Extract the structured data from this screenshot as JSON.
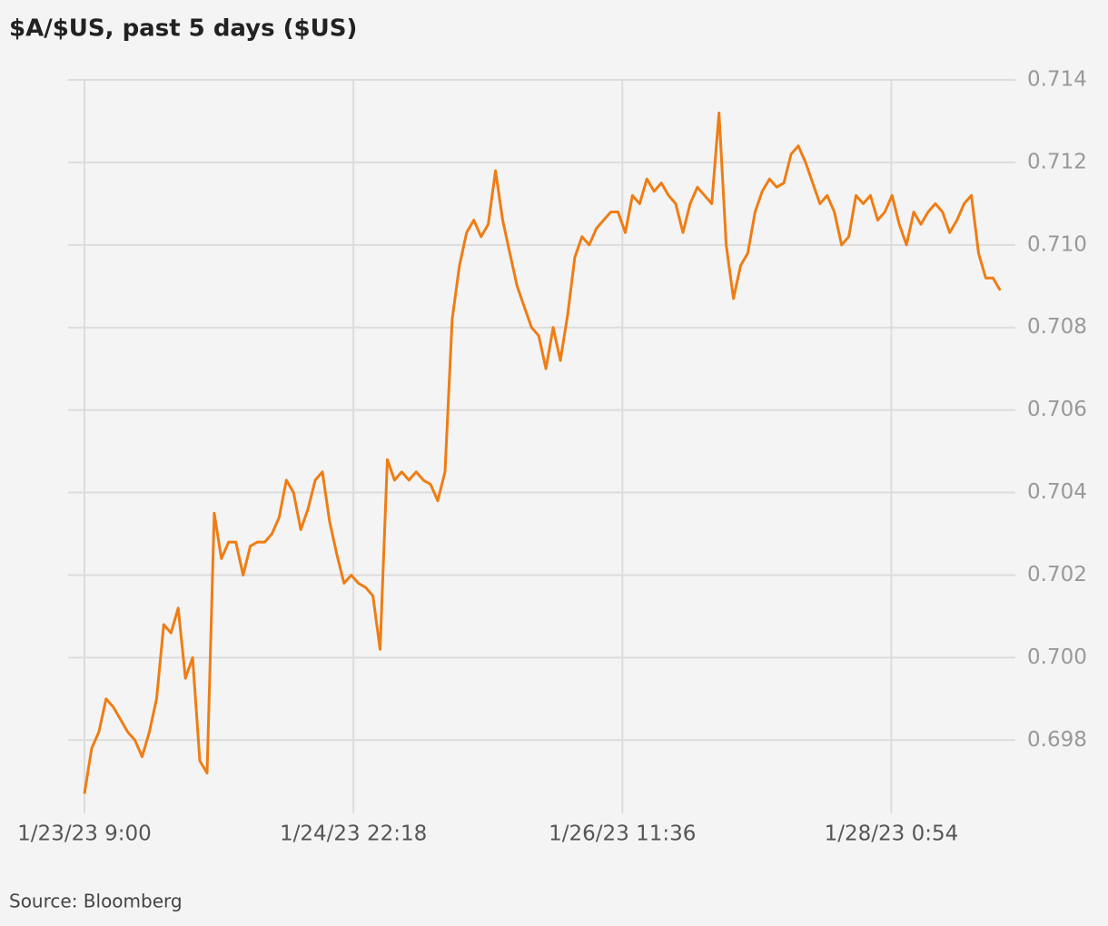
{
  "chart_data": {
    "type": "line",
    "title": "$A/$US, past 5 days ($US)",
    "source": "Source: Bloomberg",
    "color": "#ef7d14",
    "grid": true,
    "x": [
      "1/23/23 9:00",
      "1/23/23 10:00",
      "1/23/23 11:00",
      "1/23/23 12:00",
      "1/23/23 13:00",
      "1/23/23 14:00",
      "1/23/23 15:00",
      "1/23/23 16:00",
      "1/23/23 17:00",
      "1/23/23 18:00",
      "1/23/23 19:00",
      "1/23/23 20:00",
      "1/23/23 21:00",
      "1/23/23 22:00",
      "1/23/23 23:00",
      "1/24/23 0:00",
      "1/24/23 1:00",
      "1/24/23 2:00",
      "1/24/23 3:00",
      "1/24/23 4:00",
      "1/24/23 5:00",
      "1/24/23 6:00",
      "1/24/23 7:00",
      "1/24/23 8:00",
      "1/24/23 9:00",
      "1/24/23 10:00",
      "1/24/23 11:00",
      "1/24/23 12:00",
      "1/24/23 13:00",
      "1/24/23 14:00",
      "1/24/23 15:00",
      "1/24/23 16:00",
      "1/24/23 17:00",
      "1/24/23 18:00",
      "1/24/23 19:00",
      "1/24/23 20:00",
      "1/24/23 21:00",
      "1/24/23 22:00",
      "1/24/23 23:00",
      "1/25/23 0:00",
      "1/25/23 1:00",
      "1/25/23 2:00",
      "1/25/23 3:00",
      "1/25/23 4:00",
      "1/25/23 5:00",
      "1/25/23 6:00",
      "1/25/23 7:00",
      "1/25/23 8:00",
      "1/25/23 9:00",
      "1/25/23 10:00",
      "1/25/23 11:00",
      "1/25/23 12:00",
      "1/25/23 13:00",
      "1/25/23 14:00",
      "1/25/23 15:00",
      "1/25/23 16:00",
      "1/25/23 17:00",
      "1/25/23 18:00",
      "1/25/23 19:00",
      "1/25/23 20:00",
      "1/25/23 21:00",
      "1/25/23 22:00",
      "1/25/23 23:00",
      "1/26/23 0:00",
      "1/26/23 1:00",
      "1/26/23 2:00",
      "1/26/23 3:00",
      "1/26/23 4:00",
      "1/26/23 5:00",
      "1/26/23 6:00",
      "1/26/23 7:00",
      "1/26/23 8:00",
      "1/26/23 9:00",
      "1/26/23 10:00",
      "1/26/23 11:00",
      "1/26/23 12:00",
      "1/26/23 13:00",
      "1/26/23 14:00",
      "1/26/23 15:00",
      "1/26/23 16:00",
      "1/26/23 17:00",
      "1/26/23 18:00",
      "1/26/23 19:00",
      "1/26/23 20:00",
      "1/26/23 21:00",
      "1/26/23 22:00",
      "1/26/23 23:00",
      "1/27/23 0:00",
      "1/27/23 1:00",
      "1/27/23 2:00",
      "1/27/23 3:00",
      "1/27/23 4:00",
      "1/27/23 5:00",
      "1/27/23 6:00",
      "1/27/23 7:00",
      "1/27/23 8:00",
      "1/27/23 9:00",
      "1/27/23 10:00",
      "1/27/23 11:00",
      "1/27/23 12:00",
      "1/27/23 13:00",
      "1/27/23 14:00",
      "1/27/23 15:00",
      "1/27/23 16:00",
      "1/27/23 17:00",
      "1/27/23 18:00",
      "1/27/23 19:00",
      "1/27/23 20:00",
      "1/27/23 21:00",
      "1/27/23 22:00",
      "1/27/23 23:00",
      "1/28/23 0:00",
      "1/28/23 1:00",
      "1/28/23 2:00",
      "1/28/23 3:00",
      "1/28/23 4:00",
      "1/28/23 5:00",
      "1/28/23 6:00",
      "1/28/23 7:00",
      "1/28/23 8:00",
      "1/28/23 9:00",
      "1/28/23 10:00",
      "1/28/23 11:00",
      "1/28/23 12:00",
      "1/28/23 13:00",
      "1/28/23 14:00",
      "1/28/23 15:00",
      "1/28/23 16:00"
    ],
    "values": [
      0.6967,
      0.6978,
      0.6982,
      0.699,
      0.6988,
      0.6985,
      0.6982,
      0.698,
      0.6976,
      0.6982,
      0.699,
      0.7008,
      0.7006,
      0.7012,
      0.6995,
      0.7,
      0.6975,
      0.6972,
      0.7035,
      0.7024,
      0.7028,
      0.7028,
      0.702,
      0.7027,
      0.7028,
      0.7028,
      0.703,
      0.7034,
      0.7043,
      0.704,
      0.7031,
      0.7036,
      0.7043,
      0.7045,
      0.7033,
      0.7025,
      0.7018,
      0.702,
      0.7018,
      0.7017,
      0.7015,
      0.7002,
      0.7048,
      0.7043,
      0.7045,
      0.7043,
      0.7045,
      0.7043,
      0.7042,
      0.7038,
      0.7045,
      0.7082,
      0.7095,
      0.7103,
      0.7106,
      0.7102,
      0.7105,
      0.7118,
      0.7106,
      0.7098,
      0.709,
      0.7085,
      0.708,
      0.7078,
      0.707,
      0.708,
      0.7072,
      0.7083,
      0.7097,
      0.7102,
      0.71,
      0.7104,
      0.7106,
      0.7108,
      0.7108,
      0.7103,
      0.7112,
      0.711,
      0.7116,
      0.7113,
      0.7115,
      0.7112,
      0.711,
      0.7103,
      0.711,
      0.7114,
      0.7112,
      0.711,
      0.7132,
      0.71,
      0.7087,
      0.7095,
      0.7098,
      0.7108,
      0.7113,
      0.7116,
      0.7114,
      0.7115,
      0.7122,
      0.7124,
      0.712,
      0.7115,
      0.711,
      0.7112,
      0.7108,
      0.71,
      0.7102,
      0.7112,
      0.711,
      0.7112,
      0.7106,
      0.7108,
      0.7112,
      0.7105,
      0.71,
      0.7108,
      0.7105,
      0.7108,
      0.711,
      0.7108,
      0.7103,
      0.7106,
      0.711,
      0.7112,
      0.7098,
      0.7092,
      0.7092,
      0.7089
    ],
    "xlim": [
      "1/23/23 6:44",
      "1/28/23 18:06"
    ],
    "xticks": [
      "1/23/23 9:00",
      "1/24/23 22:18",
      "1/26/23 11:36",
      "1/28/23 0:54"
    ],
    "ylim": [
      0.6964,
      0.714
    ],
    "yticks": [
      0.698,
      {
        "value": 0.7,
        "label": "0.700"
      },
      0.702,
      0.704,
      0.706,
      0.708,
      {
        "value": 0.71,
        "label": "0.710"
      },
      0.712,
      0.714
    ]
  }
}
